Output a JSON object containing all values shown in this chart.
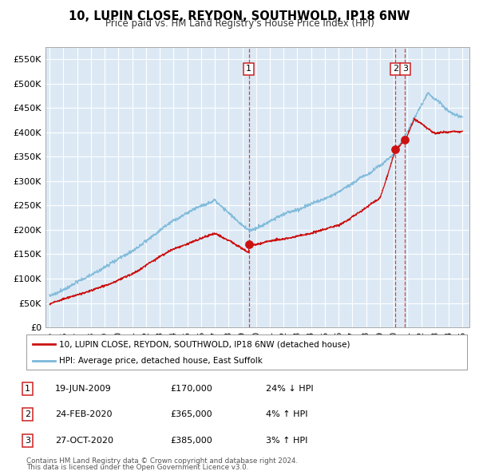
{
  "title": "10, LUPIN CLOSE, REYDON, SOUTHWOLD, IP18 6NW",
  "subtitle": "Price paid vs. HM Land Registry's House Price Index (HPI)",
  "ylim": [
    0,
    575000
  ],
  "yticks": [
    0,
    50000,
    100000,
    150000,
    200000,
    250000,
    300000,
    350000,
    400000,
    450000,
    500000,
    550000
  ],
  "ytick_labels": [
    "£0",
    "£50K",
    "£100K",
    "£150K",
    "£200K",
    "£250K",
    "£300K",
    "£350K",
    "£400K",
    "£450K",
    "£500K",
    "£550K"
  ],
  "xlim_start": 1994.7,
  "xlim_end": 2025.5,
  "plot_bg_color": "#dce9f5",
  "grid_color": "#ffffff",
  "hpi_color": "#7ab8d9",
  "price_color": "#cc1111",
  "vline_color": "#cc3333",
  "legend_label_price": "10, LUPIN CLOSE, REYDON, SOUTHWOLD, IP18 6NW (detached house)",
  "legend_label_hpi": "HPI: Average price, detached house, East Suffolk",
  "sale1_date_x": 2009.47,
  "sale1_price": 170000,
  "sale2_date_x": 2020.12,
  "sale2_price": 365000,
  "sale3_date_x": 2020.82,
  "sale3_price": 385000,
  "footer_line1": "Contains HM Land Registry data © Crown copyright and database right 2024.",
  "footer_line2": "This data is licensed under the Open Government Licence v3.0.",
  "table_rows": [
    {
      "num": "1",
      "date": "19-JUN-2009",
      "price": "£170,000",
      "hpi": "24% ↓ HPI"
    },
    {
      "num": "2",
      "date": "24-FEB-2020",
      "price": "£365,000",
      "hpi": "4% ↑ HPI"
    },
    {
      "num": "3",
      "date": "27-OCT-2020",
      "price": "£385,000",
      "hpi": "3% ↑ HPI"
    }
  ]
}
